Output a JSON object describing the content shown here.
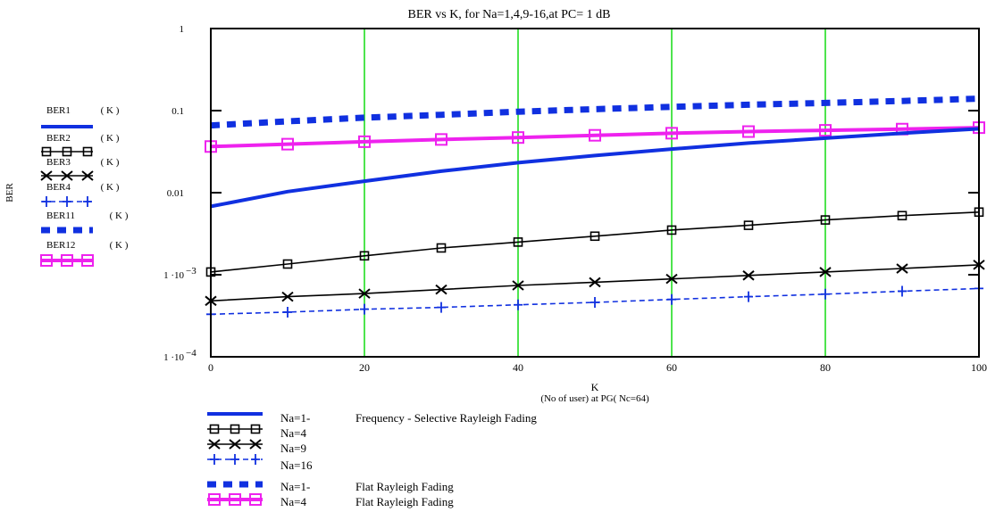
{
  "chart_data": {
    "type": "line",
    "title": "BER vs K, for Na=1,4,9-16,at PC= 1 dB",
    "xlabel": "K",
    "xlabel_sub": "(No of user) at PG( Nc=64)",
    "ylabel": "BER",
    "xlim": [
      0,
      100
    ],
    "ylim": [
      0.0001,
      1
    ],
    "y_scale": "log",
    "grid": "vertical lines at x = 20, 40, 60, 80, 100 (green)",
    "x_ticks": [
      "0",
      "20",
      "40",
      "60",
      "80",
      "100"
    ],
    "y_ticks": [
      {
        "value": 1,
        "label": "1",
        "exp": ""
      },
      {
        "value": 0.1,
        "label": "0.1",
        "exp": ""
      },
      {
        "value": 0.01,
        "label": "0.01",
        "exp": ""
      },
      {
        "value": 0.001,
        "label": "1 ·10",
        "exp": "−3"
      },
      {
        "value": 0.0001,
        "label": "1 ·10",
        "exp": "−4"
      }
    ],
    "x": [
      0,
      10,
      20,
      30,
      40,
      50,
      60,
      70,
      80,
      90,
      100
    ],
    "series": [
      {
        "name": "BER1",
        "arg": "( K )",
        "color": "#1030e0",
        "style": "solid-thick",
        "marker": "none",
        "values": [
          0.0068,
          0.0103,
          0.0138,
          0.0183,
          0.0232,
          0.0283,
          0.034,
          0.0402,
          0.0462,
          0.053,
          0.06
        ]
      },
      {
        "name": "BER2",
        "arg": "( K )",
        "color": "#000000",
        "style": "solid",
        "marker": "square",
        "values": [
          0.00108,
          0.00135,
          0.0017,
          0.00212,
          0.0025,
          0.00295,
          0.0035,
          0.004,
          0.00465,
          0.00525,
          0.0058
        ]
      },
      {
        "name": "BER3",
        "arg": "( K )",
        "color": "#000000",
        "style": "solid",
        "marker": "x",
        "values": [
          0.00048,
          0.00054,
          0.00059,
          0.00066,
          0.00074,
          0.00081,
          0.00089,
          0.00098,
          0.00108,
          0.00119,
          0.00132
        ]
      },
      {
        "name": "BER4",
        "arg": "( K )",
        "color": "#1030e0",
        "style": "dashed",
        "marker": "plus",
        "values": [
          0.00033,
          0.00035,
          0.00038,
          0.0004,
          0.00043,
          0.00046,
          0.0005,
          0.00054,
          0.00058,
          0.00063,
          0.00068
        ]
      },
      {
        "name": "BER11",
        "arg": "( K )",
        "color": "#1030e0",
        "style": "dotted-thick",
        "marker": "none",
        "values": [
          0.066,
          0.074,
          0.082,
          0.089,
          0.097,
          0.104,
          0.111,
          0.118,
          0.124,
          0.131,
          0.14
        ]
      },
      {
        "name": "BER12",
        "arg": "( K )",
        "color": "#ee22ee",
        "style": "solid-thick",
        "marker": "square",
        "values": [
          0.0365,
          0.039,
          0.0418,
          0.0445,
          0.047,
          0.05,
          0.053,
          0.0555,
          0.0575,
          0.0595,
          0.062
        ]
      }
    ],
    "legend_bottom": [
      {
        "series": 0,
        "label": "Na=1-",
        "note": "Frequency - Selective Rayleigh Fading"
      },
      {
        "series": 1,
        "label": "Na=4",
        "note": ""
      },
      {
        "series": 2,
        "label": "Na=9",
        "note": ""
      },
      {
        "series": 3,
        "label": "Na=16",
        "note": ""
      },
      {
        "series": 4,
        "label": "Na=1-",
        "note": "Flat Rayleigh Fading"
      },
      {
        "series": 5,
        "label": "Na=4",
        "note": "Flat Rayleigh Fading"
      }
    ]
  }
}
